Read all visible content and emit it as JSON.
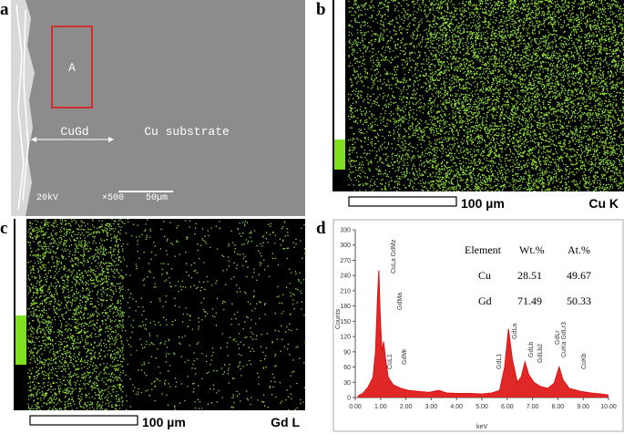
{
  "panels": {
    "a": {
      "letter": "a",
      "region": "A",
      "left_label": "CuGd",
      "right_label": "Cu substrate",
      "voltage": "20kV",
      "magnification": "×500",
      "scale": "50µm"
    },
    "b": {
      "letter": "b",
      "scale": "100 µm",
      "element": "Cu K"
    },
    "c": {
      "letter": "c",
      "scale": "100 µm",
      "element": "Gd L"
    },
    "d": {
      "letter": "d"
    }
  },
  "table": {
    "header": [
      "Element",
      "Wt.%",
      "At.%"
    ],
    "rows": [
      [
        "Cu",
        28.51,
        49.67
      ],
      [
        "Gd",
        71.49,
        50.33
      ]
    ]
  },
  "chart_data": {
    "type": "area",
    "x_label": "keV",
    "y_label": "Counts",
    "color": "#dd1111",
    "x": [
      0.1,
      0.3,
      0.5,
      0.7,
      0.8,
      0.88,
      0.93,
      0.98,
      1.05,
      1.12,
      1.2,
      1.3,
      1.5,
      1.8,
      2.1,
      2.5,
      2.9,
      3.3,
      3.6,
      4.0,
      4.5,
      5.0,
      5.4,
      5.7,
      5.9,
      6.05,
      6.2,
      6.4,
      6.55,
      6.7,
      6.85,
      7.05,
      7.3,
      7.6,
      7.85,
      8.05,
      8.2,
      8.45,
      8.9,
      9.3,
      9.7,
      10.0
    ],
    "values": [
      3,
      8,
      20,
      40,
      90,
      200,
      250,
      170,
      90,
      110,
      75,
      40,
      25,
      18,
      14,
      12,
      10,
      14,
      9,
      8,
      8,
      7,
      9,
      14,
      60,
      135,
      75,
      30,
      40,
      70,
      45,
      30,
      22,
      18,
      28,
      60,
      35,
      18,
      12,
      9,
      7,
      5
    ],
    "annotations": [
      "CuLa GdMz",
      "GdMa",
      "GdMr",
      "CuL1",
      "GdL1",
      "GdLa",
      "GdLb",
      "GdLb2",
      "GdLr",
      "CuKa GdLr3",
      "CuKb"
    ],
    "xlim": [
      0,
      10
    ],
    "ylim": [
      0,
      330
    ],
    "xticks": [
      {
        "value": 0,
        "label": "0.00"
      },
      {
        "value": 1,
        "label": "1.00"
      },
      {
        "value": 2,
        "label": "2.00"
      },
      {
        "value": 3,
        "label": "3.00"
      },
      {
        "value": 4,
        "label": "4.00"
      },
      {
        "value": 5,
        "label": "5.00"
      },
      {
        "value": 6,
        "label": "6.00"
      },
      {
        "value": 7,
        "label": "7.00"
      },
      {
        "value": 8,
        "label": "8.00"
      },
      {
        "value": 9,
        "label": "9.00"
      },
      {
        "value": 10,
        "label": "10.00"
      }
    ],
    "yticks": [
      0,
      30,
      60,
      90,
      120,
      150,
      180,
      210,
      240,
      270,
      300,
      330
    ]
  }
}
